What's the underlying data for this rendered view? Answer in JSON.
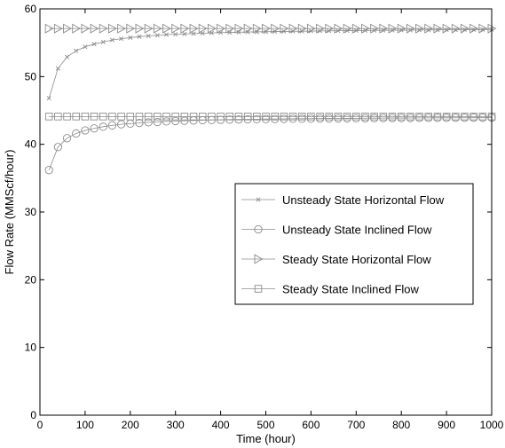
{
  "chart_data": {
    "type": "line",
    "xlabel": "Time (hour)",
    "ylabel": "Flow Rate (MMScf/hour)",
    "xlim": [
      0,
      1000
    ],
    "ylim": [
      0,
      60
    ],
    "xticks": [
      "0",
      "100",
      "200",
      "300",
      "400",
      "500",
      "600",
      "700",
      "800",
      "900",
      "1000"
    ],
    "yticks": [
      "0",
      "10",
      "20",
      "30",
      "40",
      "50",
      "60"
    ],
    "grid": false,
    "legend_position": "right",
    "x": [
      20,
      40,
      60,
      80,
      100,
      120,
      140,
      160,
      180,
      200,
      220,
      240,
      260,
      280,
      300,
      320,
      340,
      360,
      380,
      400,
      420,
      440,
      460,
      480,
      500,
      520,
      540,
      560,
      580,
      600,
      620,
      640,
      660,
      680,
      700,
      720,
      740,
      760,
      780,
      800,
      820,
      840,
      860,
      880,
      900,
      920,
      940,
      960,
      980,
      1000
    ],
    "series": [
      {
        "name": "Unsteady State Horizontal Flow",
        "marker": "x",
        "color": "#8c8c8c",
        "values": [
          46.8,
          51.2,
          52.9,
          53.8,
          54.4,
          54.8,
          55.1,
          55.4,
          55.6,
          55.75,
          55.9,
          56.0,
          56.1,
          56.2,
          56.25,
          56.3,
          56.35,
          56.4,
          56.45,
          56.5,
          56.52,
          56.55,
          56.58,
          56.6,
          56.62,
          56.65,
          56.67,
          56.69,
          56.7,
          56.72,
          56.74,
          56.75,
          56.77,
          56.78,
          56.8,
          56.81,
          56.82,
          56.83,
          56.84,
          56.85,
          56.86,
          56.87,
          56.88,
          56.89,
          56.9,
          56.91,
          56.92,
          56.93,
          56.94,
          56.95
        ]
      },
      {
        "name": "Unsteady State Inclined Flow",
        "marker": "circle",
        "color": "#8c8c8c",
        "values": [
          36.2,
          39.6,
          40.9,
          41.6,
          42.05,
          42.35,
          42.6,
          42.8,
          42.95,
          43.05,
          43.15,
          43.25,
          43.3,
          43.38,
          43.43,
          43.48,
          43.52,
          43.56,
          43.59,
          43.62,
          43.65,
          43.67,
          43.69,
          43.71,
          43.73,
          43.74,
          43.76,
          43.77,
          43.78,
          43.79,
          43.8,
          43.81,
          43.82,
          43.83,
          43.84,
          43.85,
          43.86,
          43.87,
          43.88,
          43.88,
          43.89,
          43.9,
          43.9,
          43.91,
          43.91,
          43.92,
          43.92,
          43.93,
          43.93,
          43.94
        ]
      },
      {
        "name": "Steady State Horizontal Flow",
        "marker": "triangle-right",
        "color": "#8c8c8c",
        "values": [
          57.1,
          57.1,
          57.1,
          57.1,
          57.1,
          57.1,
          57.1,
          57.1,
          57.1,
          57.1,
          57.1,
          57.1,
          57.1,
          57.1,
          57.1,
          57.1,
          57.1,
          57.1,
          57.1,
          57.1,
          57.1,
          57.1,
          57.1,
          57.1,
          57.1,
          57.1,
          57.1,
          57.1,
          57.1,
          57.1,
          57.1,
          57.1,
          57.1,
          57.1,
          57.1,
          57.1,
          57.1,
          57.1,
          57.1,
          57.1,
          57.1,
          57.1,
          57.1,
          57.1,
          57.1,
          57.1,
          57.1,
          57.1,
          57.1,
          57.1
        ]
      },
      {
        "name": "Steady State Inclined Flow",
        "marker": "square",
        "color": "#8c8c8c",
        "values": [
          44.1,
          44.1,
          44.1,
          44.1,
          44.1,
          44.1,
          44.1,
          44.1,
          44.1,
          44.1,
          44.1,
          44.1,
          44.1,
          44.1,
          44.1,
          44.1,
          44.1,
          44.1,
          44.1,
          44.1,
          44.1,
          44.1,
          44.1,
          44.1,
          44.1,
          44.1,
          44.1,
          44.1,
          44.1,
          44.1,
          44.1,
          44.1,
          44.1,
          44.1,
          44.1,
          44.1,
          44.1,
          44.1,
          44.1,
          44.1,
          44.1,
          44.1,
          44.1,
          44.1,
          44.1,
          44.1,
          44.1,
          44.1,
          44.1,
          44.1
        ]
      }
    ]
  }
}
